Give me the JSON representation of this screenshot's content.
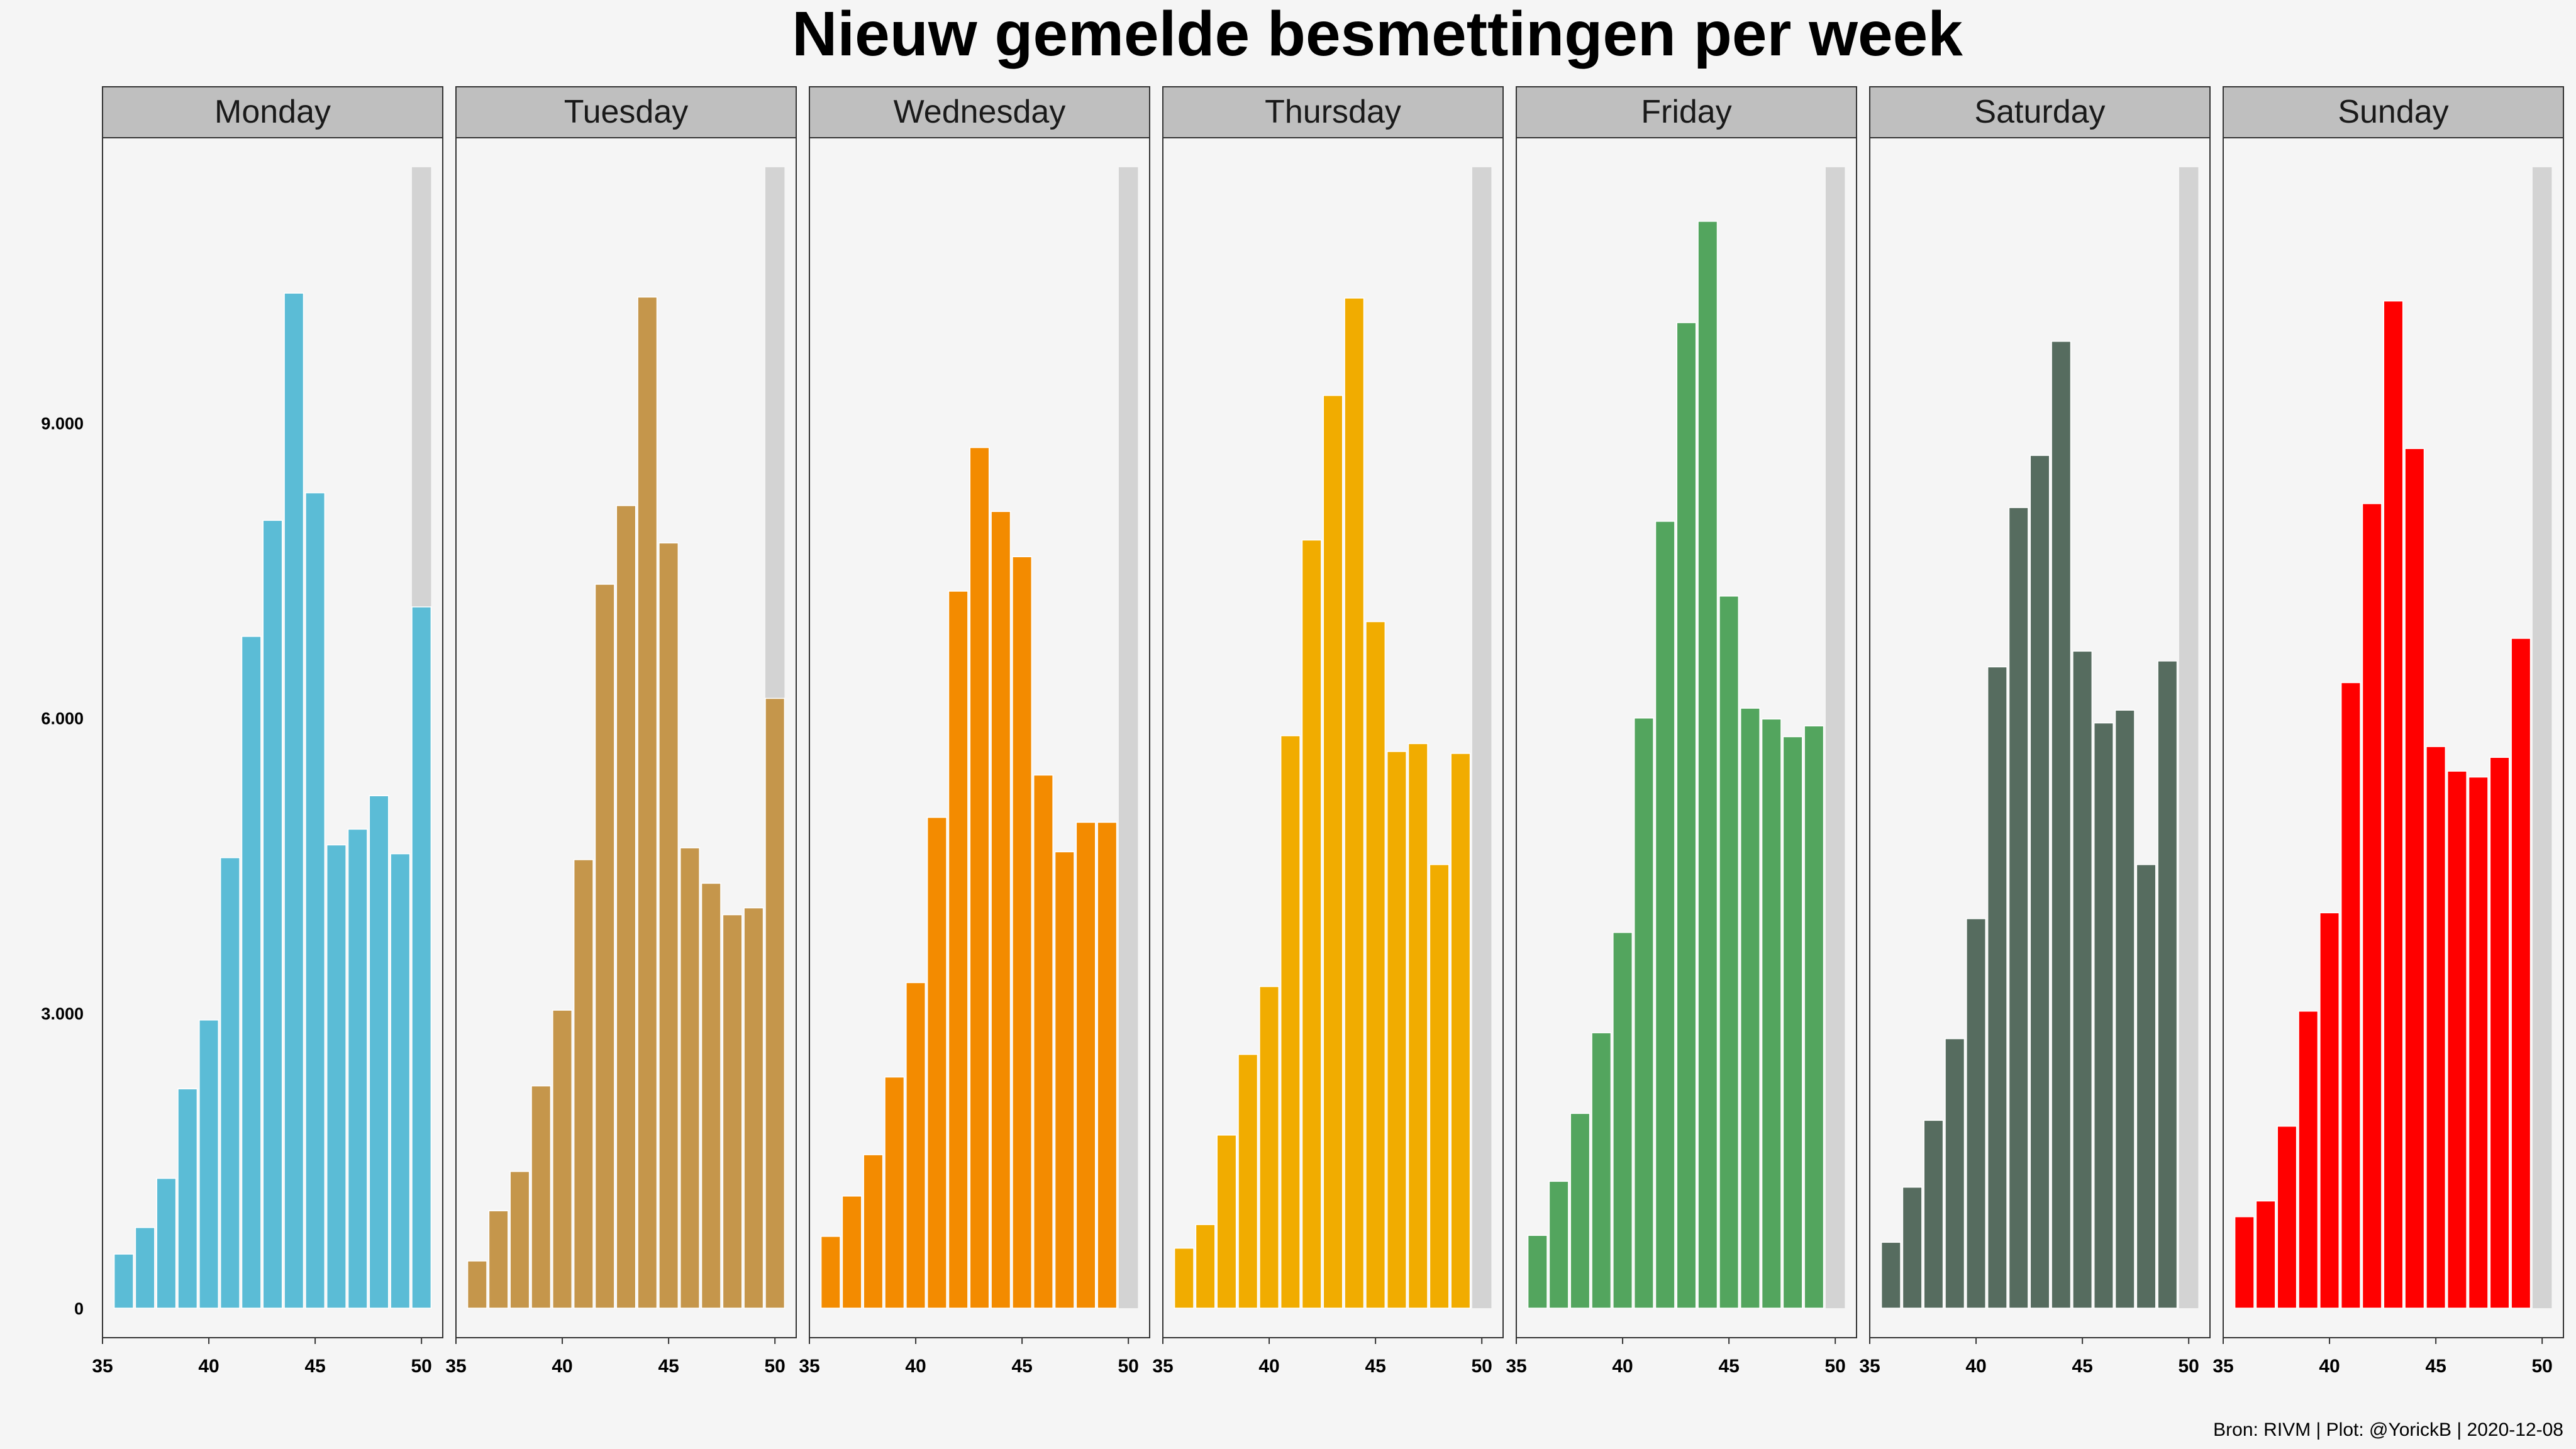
{
  "chart_data": {
    "type": "bar",
    "title": "Nieuw gemelde besmettingen per week",
    "caption": "Bron: RIVM | Plot: @YorickB |  2020-12-08",
    "xlabel": "",
    "ylabel": "",
    "x": [
      36,
      37,
      38,
      39,
      40,
      41,
      42,
      43,
      44,
      45,
      46,
      47,
      48,
      49,
      50
    ],
    "xlim": [
      35,
      51
    ],
    "ylim": [
      -300,
      11900
    ],
    "x_ticks": [
      35,
      40,
      45,
      50
    ],
    "x_tick_labels": [
      "35",
      "40",
      "45",
      "50"
    ],
    "y_ticks": [
      0,
      3000,
      6000,
      9000
    ],
    "y_tick_labels": [
      "0",
      "3.000",
      "6.000",
      "9.000"
    ],
    "grid": false,
    "legend": "none",
    "background_bar": {
      "x": 50,
      "value": 11600,
      "color": "#d3d3d3"
    },
    "series": [
      {
        "name": "Monday",
        "color": "#5bbcd6",
        "values": [
          550,
          820,
          1320,
          2230,
          2930,
          4580,
          6830,
          8010,
          10320,
          8290,
          4710,
          4870,
          5210,
          4620,
          7130
        ]
      },
      {
        "name": "Tuesday",
        "color": "#c5964b",
        "values": [
          480,
          990,
          1390,
          2260,
          3030,
          4560,
          7360,
          8160,
          10280,
          7780,
          4680,
          4320,
          4000,
          4070,
          6200
        ]
      },
      {
        "name": "Wednesday",
        "color": "#f38b00",
        "values": [
          730,
          1140,
          1560,
          2350,
          3310,
          4990,
          7290,
          8750,
          8100,
          7640,
          5420,
          4640,
          4940,
          4940,
          null
        ]
      },
      {
        "name": "Thursday",
        "color": "#f1ac00",
        "values": [
          610,
          850,
          1760,
          2580,
          3270,
          5820,
          7810,
          9280,
          10270,
          6980,
          5660,
          5740,
          4510,
          5640,
          null
        ]
      },
      {
        "name": "Friday",
        "color": "#53a55e",
        "values": [
          740,
          1290,
          1980,
          2800,
          3820,
          6000,
          8000,
          10020,
          11050,
          7240,
          6100,
          5990,
          5810,
          5920,
          null
        ]
      },
      {
        "name": "Saturday",
        "color": "#566c5f",
        "values": [
          670,
          1230,
          1910,
          2740,
          3960,
          6520,
          8140,
          8670,
          9830,
          6680,
          5950,
          6080,
          4510,
          6580,
          null
        ]
      },
      {
        "name": "Sunday",
        "color": "#ff0000",
        "values": [
          930,
          1090,
          1850,
          3020,
          4020,
          6360,
          8180,
          10240,
          8740,
          5710,
          5460,
          5400,
          5600,
          6810,
          null
        ]
      }
    ]
  }
}
